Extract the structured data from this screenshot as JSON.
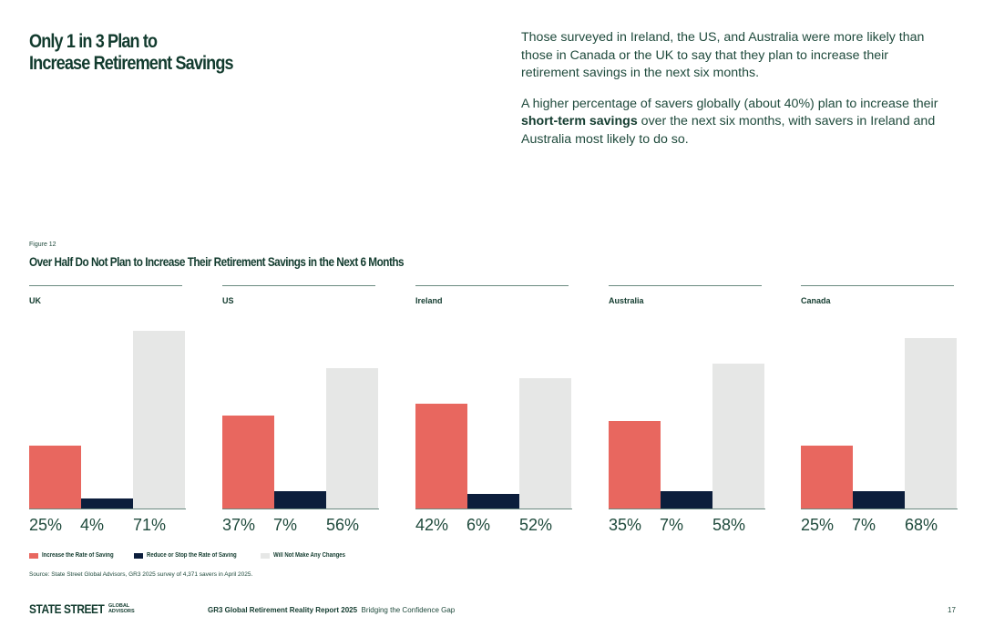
{
  "title": {
    "line1": "Only 1 in 3 Plan to",
    "line2": "Increase Retirement Savings"
  },
  "intro": {
    "p1": "Those surveyed in Ireland, the US, and Australia were more likely than those in Canada or the UK to say that they plan to increase their retirement savings in the next six months.",
    "p2_before": "A higher percentage of savers globally (about 40%) plan to increase their ",
    "p2_bold": "short-term savings",
    "p2_after": " over the next six months, with savers in Ireland and Australia most likely to do so."
  },
  "figure": {
    "label": "Figure 12",
    "title": "Over Half Do Not Plan to Increase Their Retirement Savings in the Next 6 Months"
  },
  "colors": {
    "increase": "#e8675f",
    "reduce": "#0c1e3c",
    "no_change": "#e6e7e6"
  },
  "chart_data": {
    "type": "bar",
    "title": "Over Half Do Not Plan to Increase Their Retirement Savings in the Next 6 Months",
    "ylim": [
      0,
      75
    ],
    "series_names": [
      "Increase the Rate of Saving",
      "Reduce or Stop the Rate of Saving",
      "Will Not Make Any Changes"
    ],
    "panels": [
      {
        "country": "UK",
        "values": [
          25,
          4,
          71
        ],
        "labels": [
          "25%",
          "4%",
          "71%"
        ]
      },
      {
        "country": "US",
        "values": [
          37,
          7,
          56
        ],
        "labels": [
          "37%",
          "7%",
          "56%"
        ]
      },
      {
        "country": "Ireland",
        "values": [
          42,
          6,
          52
        ],
        "labels": [
          "42%",
          "6%",
          "52%"
        ]
      },
      {
        "country": "Australia",
        "values": [
          35,
          7,
          58
        ],
        "labels": [
          "35%",
          "7%",
          "58%"
        ]
      },
      {
        "country": "Canada",
        "values": [
          25,
          7,
          68
        ],
        "labels": [
          "25%",
          "7%",
          "68%"
        ]
      }
    ]
  },
  "legend": {
    "increase": "Increase the Rate of Saving",
    "reduce": "Reduce or Stop the Rate of Saving",
    "no_change": "Will Not Make Any Changes"
  },
  "source": "Source: State Street Global Advisors, GR3 2025 survey of 4,371 savers in April 2025.",
  "footer": {
    "logo_main": "STATE STREET",
    "logo_sub1": "GLOBAL",
    "logo_sub2": "ADVISORS",
    "report": "GR3 Global Retirement Reality Report 2025",
    "subtitle": "Bridging the Confidence Gap",
    "page": "17"
  }
}
